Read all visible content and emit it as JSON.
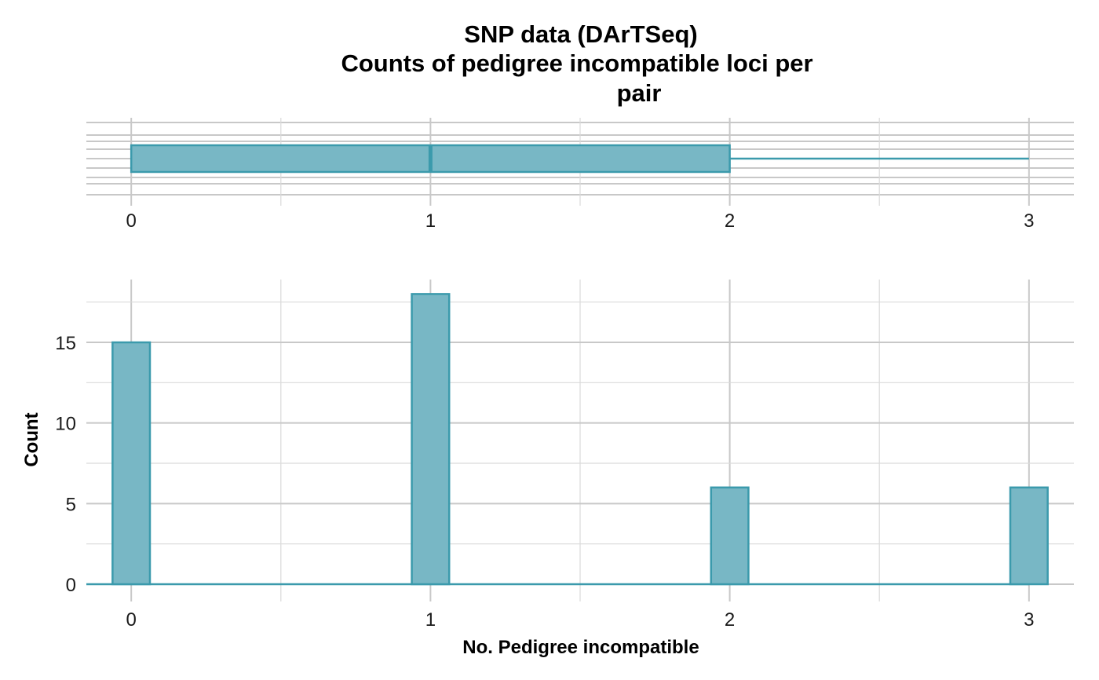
{
  "title_lines": [
    "SNP data (DArTSeq)",
    "Counts of pedigree incompatible loci per",
    "pair"
  ],
  "colors": {
    "fill": "#78b7c5",
    "stroke": "#3b9aac",
    "grid": "#c8c8c8"
  },
  "chart_data": [
    {
      "type": "box",
      "orientation": "horizontal",
      "xlim": [
        -0.15,
        3.15
      ],
      "x_ticks": [
        "0",
        "1",
        "2",
        "3"
      ],
      "min": 0,
      "q1": 0,
      "median": 1,
      "q3": 2,
      "max": 3,
      "grid": true
    },
    {
      "type": "bar",
      "title": "",
      "xlabel": "No. Pedigree incompatible",
      "ylabel": "Count",
      "xlim": [
        -0.15,
        3.15
      ],
      "ylim": [
        0,
        19
      ],
      "x_ticks": [
        "0",
        "1",
        "2",
        "3"
      ],
      "y_ticks": [
        "0",
        "5",
        "10",
        "15"
      ],
      "bin_width": 0.125,
      "x": [
        0,
        1,
        2,
        3
      ],
      "values": [
        15,
        18,
        6,
        6
      ],
      "grid": true
    }
  ]
}
